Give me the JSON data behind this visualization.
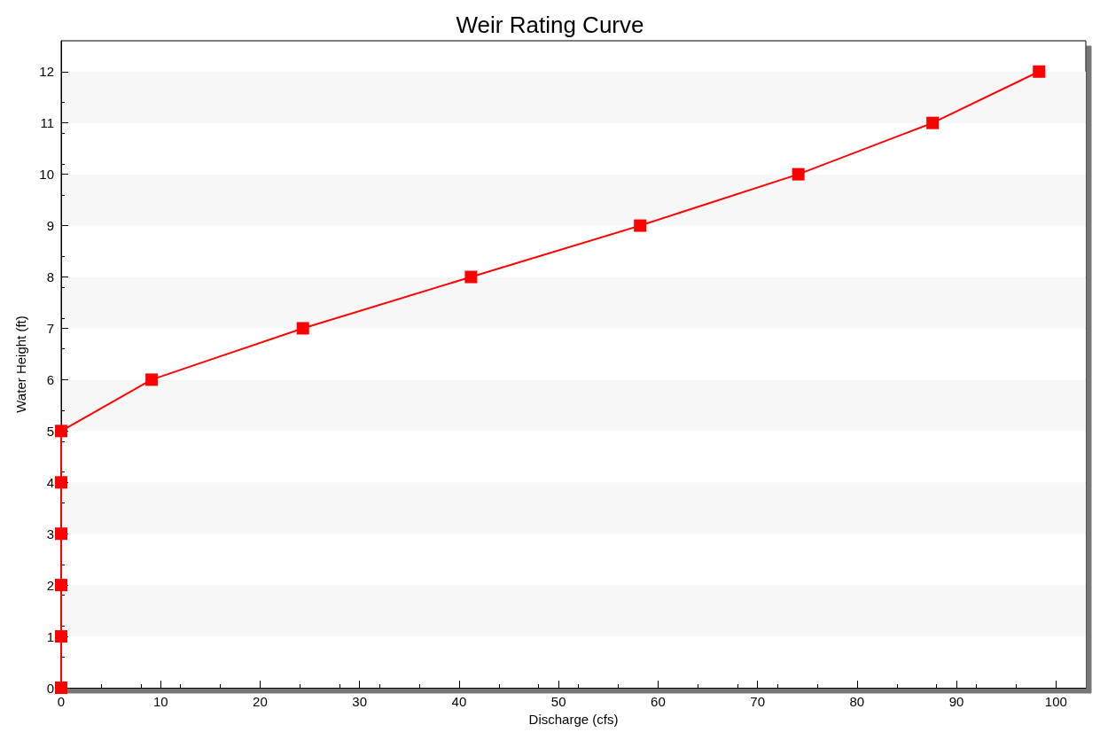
{
  "chart_data": {
    "type": "line",
    "title": "Weir Rating Curve",
    "xlabel": "Discharge (cfs)",
    "ylabel": "Water Height (ft)",
    "x": [
      0,
      0,
      0,
      0,
      0,
      0,
      9.1,
      24.3,
      41.2,
      58.2,
      74.1,
      87.6,
      98.3
    ],
    "series": [
      {
        "color": "#ff0000",
        "values": [
          0,
          1,
          2,
          3,
          4,
          5,
          6,
          7,
          8,
          9,
          10,
          11,
          12
        ]
      }
    ],
    "xlim": [
      0,
      103
    ],
    "xticks": [
      0,
      10,
      20,
      30,
      40,
      50,
      60,
      70,
      80,
      90,
      100
    ],
    "ylim": [
      0,
      12.6
    ],
    "yticks": [
      0,
      1,
      2,
      3,
      4,
      5,
      6,
      7,
      8,
      9,
      10,
      11,
      12
    ],
    "marker": "square",
    "line_style": "solid"
  }
}
